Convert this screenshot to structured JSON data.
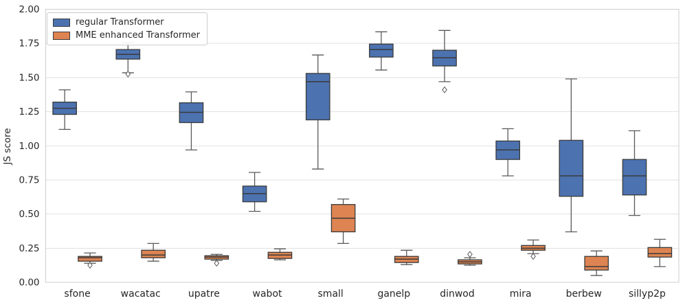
{
  "figure": {
    "title": "",
    "ylabel": "JS score",
    "xlabel": "",
    "background_color": "#ffffff"
  },
  "legend": {
    "position": "upper left",
    "items": [
      {
        "label": "regular Transformer",
        "color": "#4C72B0"
      },
      {
        "label": "MME enhanced Transformer",
        "color": "#DD8452"
      }
    ]
  },
  "colors": {
    "series_blue": "#4C72B0",
    "series_orange": "#DD8452",
    "box_edge": "#3a3a3a",
    "whisker": "#595959",
    "gridline": "#e2e2e2",
    "spine": "#cccccc",
    "tick_text": "#262626"
  },
  "chart_data": {
    "type": "box",
    "title": "",
    "xlabel": "",
    "ylabel": "JS score",
    "ylim": [
      0.0,
      2.0
    ],
    "yticks": [
      0.0,
      0.25,
      0.5,
      0.75,
      1.0,
      1.25,
      1.5,
      1.75,
      2.0
    ],
    "ytick_labels": [
      "0.00",
      "0.25",
      "0.50",
      "0.75",
      "1.00",
      "1.25",
      "1.50",
      "1.75",
      "2.00"
    ],
    "grid": "horizontal",
    "legend_position": "upper left",
    "categories": [
      "sfone",
      "wacatac",
      "upatre",
      "wabot",
      "small",
      "ganelp",
      "dinwod",
      "mira",
      "berbew",
      "sillyp2p"
    ],
    "series": [
      {
        "name": "regular Transformer",
        "color": "#4C72B0",
        "boxes": [
          {
            "whislo": 1.12,
            "q1": 1.23,
            "med": 1.275,
            "q3": 1.32,
            "whishi": 1.41,
            "fliers": []
          },
          {
            "whislo": 1.535,
            "q1": 1.635,
            "med": 1.67,
            "q3": 1.705,
            "whishi": 1.755,
            "fliers": [
              1.525
            ]
          },
          {
            "whislo": 0.97,
            "q1": 1.17,
            "med": 1.245,
            "q3": 1.315,
            "whishi": 1.395,
            "fliers": []
          },
          {
            "whislo": 0.52,
            "q1": 0.59,
            "med": 0.65,
            "q3": 0.705,
            "whishi": 0.805,
            "fliers": []
          },
          {
            "whislo": 0.83,
            "q1": 1.19,
            "med": 1.47,
            "q3": 1.53,
            "whishi": 1.665,
            "fliers": []
          },
          {
            "whislo": 1.555,
            "q1": 1.65,
            "med": 1.705,
            "q3": 1.745,
            "whishi": 1.835,
            "fliers": []
          },
          {
            "whislo": 1.47,
            "q1": 1.585,
            "med": 1.645,
            "q3": 1.7,
            "whishi": 1.845,
            "fliers": [
              1.41
            ]
          },
          {
            "whislo": 0.78,
            "q1": 0.9,
            "med": 0.97,
            "q3": 1.035,
            "whishi": 1.125,
            "fliers": []
          },
          {
            "whislo": 0.37,
            "q1": 0.63,
            "med": 0.78,
            "q3": 1.04,
            "whishi": 1.49,
            "fliers": []
          },
          {
            "whislo": 0.49,
            "q1": 0.64,
            "med": 0.78,
            "q3": 0.9,
            "whishi": 1.11,
            "fliers": []
          }
        ]
      },
      {
        "name": "MME enhanced Transformer",
        "color": "#DD8452",
        "boxes": [
          {
            "whislo": 0.14,
            "q1": 0.155,
            "med": 0.18,
            "q3": 0.19,
            "whishi": 0.215,
            "fliers": [
              0.125
            ]
          },
          {
            "whislo": 0.155,
            "q1": 0.18,
            "med": 0.2,
            "q3": 0.235,
            "whishi": 0.285,
            "fliers": []
          },
          {
            "whislo": 0.16,
            "q1": 0.17,
            "med": 0.185,
            "q3": 0.195,
            "whishi": 0.205,
            "fliers": [
              0.14
            ]
          },
          {
            "whislo": 0.165,
            "q1": 0.175,
            "med": 0.2,
            "q3": 0.22,
            "whishi": 0.245,
            "fliers": []
          },
          {
            "whislo": 0.285,
            "q1": 0.37,
            "med": 0.47,
            "q3": 0.57,
            "whishi": 0.61,
            "fliers": []
          },
          {
            "whislo": 0.13,
            "q1": 0.145,
            "med": 0.17,
            "q3": 0.19,
            "whishi": 0.235,
            "fliers": []
          },
          {
            "whislo": 0.125,
            "q1": 0.135,
            "med": 0.15,
            "q3": 0.165,
            "whishi": 0.18,
            "fliers": [
              0.205
            ]
          },
          {
            "whislo": 0.21,
            "q1": 0.235,
            "med": 0.25,
            "q3": 0.27,
            "whishi": 0.31,
            "fliers": [
              0.19
            ]
          },
          {
            "whislo": 0.05,
            "q1": 0.09,
            "med": 0.115,
            "q3": 0.19,
            "whishi": 0.23,
            "fliers": []
          },
          {
            "whislo": 0.115,
            "q1": 0.185,
            "med": 0.21,
            "q3": 0.255,
            "whishi": 0.315,
            "fliers": []
          }
        ]
      }
    ]
  }
}
